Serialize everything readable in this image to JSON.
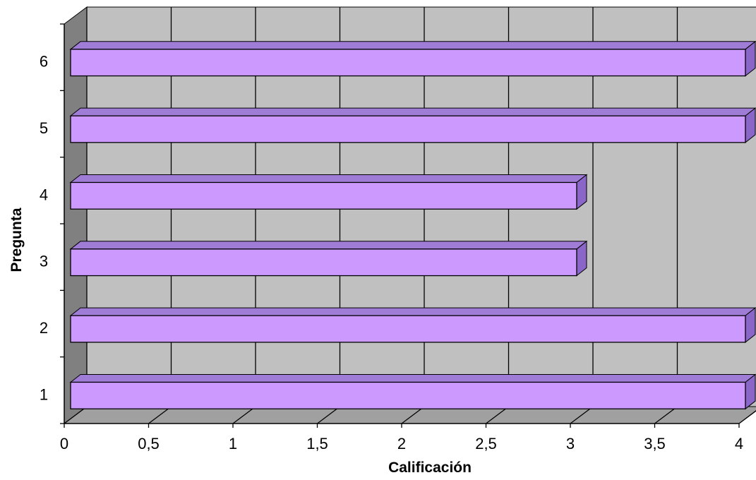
{
  "chart_data": {
    "type": "bar",
    "orientation": "horizontal",
    "style": "3d",
    "categories": [
      "1",
      "2",
      "3",
      "4",
      "5",
      "6"
    ],
    "values": [
      4,
      4,
      3,
      3,
      4,
      4
    ],
    "xlabel": "Calificación",
    "ylabel": "Pregunta",
    "xlim": [
      0,
      4
    ],
    "xticks": [
      "0",
      "0,5",
      "1",
      "1,5",
      "2",
      "2,5",
      "3",
      "3,5",
      "4"
    ],
    "grid": true,
    "legend": "none"
  },
  "colors": {
    "bar_front": "#cc99ff",
    "bar_top": "#9f7cd6",
    "bar_side": "#8a66c8",
    "plot_back": "#c0c0c0",
    "left_wall": "#808080",
    "floor": "#a0a0a0",
    "gridline": "#000000"
  }
}
